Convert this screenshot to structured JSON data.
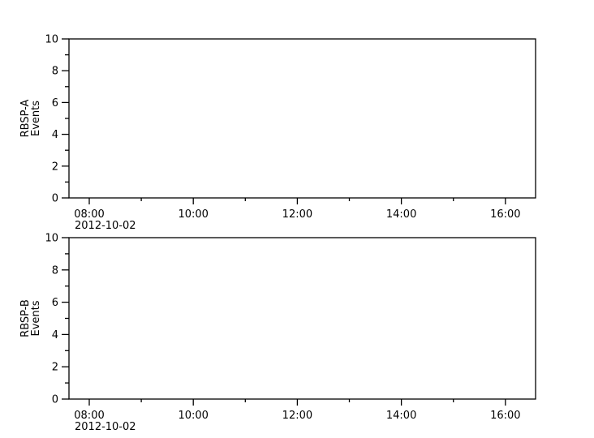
{
  "figure": {
    "background_color": "#ffffff",
    "axis_color": "#000000",
    "text_color": "#000000",
    "date_label": "2012-10-02"
  },
  "chart_data": [
    {
      "type": "line",
      "title": "",
      "ylabel": "RBSP-A Events",
      "ylabel_lines": [
        "RBSP-A",
        "Events"
      ],
      "xlabel": "",
      "ylim": [
        0,
        10
      ],
      "yticks": [
        0,
        2,
        4,
        6,
        8,
        10
      ],
      "ytick_labels": [
        "0",
        "2",
        "4",
        "6",
        "8",
        "10"
      ],
      "yticks_minor": [
        1,
        3,
        5,
        7,
        9
      ],
      "x_date": "2012-10-02",
      "xlim_hours": [
        7.61,
        16.58
      ],
      "xticks_hours": [
        8,
        10,
        12,
        14,
        16
      ],
      "xtick_labels": [
        "08:00",
        "10:00",
        "12:00",
        "14:00",
        "16:00"
      ],
      "xticks_minor_hours": [
        9,
        11,
        13,
        15
      ],
      "grid": false,
      "legend": null,
      "series": []
    },
    {
      "type": "line",
      "title": "",
      "ylabel": "RBSP-B Events",
      "ylabel_lines": [
        "RBSP-B",
        "Events"
      ],
      "xlabel": "",
      "ylim": [
        0,
        10
      ],
      "yticks": [
        0,
        2,
        4,
        6,
        8,
        10
      ],
      "ytick_labels": [
        "0",
        "2",
        "4",
        "6",
        "8",
        "10"
      ],
      "yticks_minor": [
        1,
        3,
        5,
        7,
        9
      ],
      "x_date": "2012-10-02",
      "xlim_hours": [
        7.61,
        16.58
      ],
      "xticks_hours": [
        8,
        10,
        12,
        14,
        16
      ],
      "xtick_labels": [
        "08:00",
        "10:00",
        "12:00",
        "14:00",
        "16:00"
      ],
      "xticks_minor_hours": [
        9,
        11,
        13,
        15
      ],
      "grid": false,
      "legend": null,
      "series": []
    }
  ]
}
